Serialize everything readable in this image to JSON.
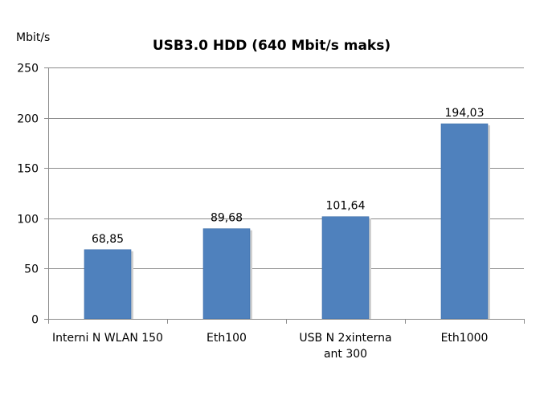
{
  "chart_data": {
    "type": "bar",
    "title": "USB3.0 HDD  (640 Mbit/s maks)",
    "ylabel": "Mbit/s",
    "xlabel": "",
    "categories": [
      [
        "Interni N WLAN 150"
      ],
      [
        "Eth100"
      ],
      [
        "USB N 2xinterna",
        "ant 300"
      ],
      [
        "Eth1000"
      ]
    ],
    "values": [
      68.85,
      89.68,
      101.64,
      194.03
    ],
    "value_labels": [
      "68,85",
      "89,68",
      "101,64",
      "194,03"
    ],
    "ylim": [
      0,
      250
    ],
    "yticks": [
      0,
      50,
      100,
      150,
      200,
      250
    ],
    "grid": true,
    "legend": "none",
    "colors": {
      "bar": "#4F81BD",
      "bar_edge": "#3A6CA8",
      "grid": "#8C8C8C",
      "axis": "#8C8C8C"
    }
  }
}
